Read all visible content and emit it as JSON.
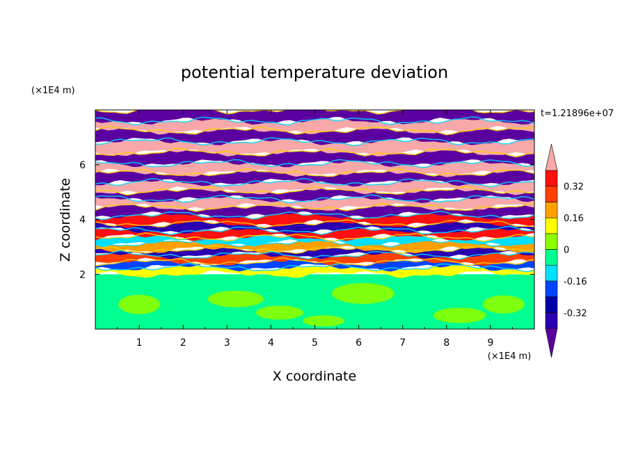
{
  "chart_data": {
    "type": "heatmap",
    "title": "potential temperature deviation",
    "xlabel": "X coordinate",
    "ylabel": "Z coordinate",
    "x_unit": "(×1E4 m)",
    "y_unit": "(×1E4 m)",
    "time_label": "t=1.21896e+07",
    "xlim": [
      0,
      10
    ],
    "ylim": [
      0,
      8
    ],
    "x_ticks": [
      1,
      2,
      3,
      4,
      5,
      6,
      7,
      8,
      9
    ],
    "y_ticks": [
      2,
      4,
      6
    ],
    "colorbar": {
      "levels": [
        -0.4,
        -0.32,
        -0.24,
        -0.16,
        -0.08,
        0,
        0.08,
        0.16,
        0.24,
        0.32,
        0.4
      ],
      "colors": [
        "#5b00a0",
        "#2a00b0",
        "#0000a8",
        "#0044ff",
        "#00e0ff",
        "#00ff90",
        "#8cff00",
        "#ffff00",
        "#ffa000",
        "#ff4000",
        "#ff1010",
        "#f8a8a8"
      ],
      "tick_labels": [
        "0.32",
        "0.16",
        "0",
        "-0.16",
        "-0.32"
      ],
      "tick_values": [
        0.32,
        0.16,
        0,
        -0.16,
        -0.32
      ]
    },
    "bands_upper": [
      {
        "z0": 2.0,
        "z1": 2.25,
        "value": 0.12
      },
      {
        "z0": 2.25,
        "z1": 2.45,
        "value": -0.22
      },
      {
        "z0": 2.45,
        "z1": 2.7,
        "value": 0.28
      },
      {
        "z0": 2.7,
        "z1": 2.9,
        "value": -0.34
      },
      {
        "z0": 2.9,
        "z1": 3.15,
        "value": 0.18
      },
      {
        "z0": 3.15,
        "z1": 3.35,
        "value": -0.1
      },
      {
        "z0": 3.35,
        "z1": 3.6,
        "value": 0.33
      },
      {
        "z0": 3.6,
        "z1": 3.85,
        "value": -0.38
      },
      {
        "z0": 3.85,
        "z1": 4.15,
        "value": 0.36
      },
      {
        "z0": 4.15,
        "z1": 4.45,
        "value": -0.42
      },
      {
        "z0": 4.45,
        "z1": 4.75,
        "value": 0.44
      },
      {
        "z0": 4.75,
        "z1": 5.05,
        "value": -0.43
      },
      {
        "z0": 5.05,
        "z1": 5.35,
        "value": 0.43
      },
      {
        "z0": 5.35,
        "z1": 5.7,
        "value": -0.44
      },
      {
        "z0": 5.7,
        "z1": 6.05,
        "value": 0.44
      },
      {
        "z0": 6.05,
        "z1": 6.45,
        "value": -0.44
      },
      {
        "z0": 6.45,
        "z1": 6.85,
        "value": 0.44
      },
      {
        "z0": 6.85,
        "z1": 7.25,
        "value": -0.44
      },
      {
        "z0": 7.25,
        "z1": 7.6,
        "value": 0.44
      },
      {
        "z0": 7.6,
        "z1": 8.0,
        "value": -0.44
      }
    ],
    "lower_region": {
      "z0": 0,
      "z1": 2.0,
      "value": -0.02,
      "patch_value": 0.05
    }
  }
}
